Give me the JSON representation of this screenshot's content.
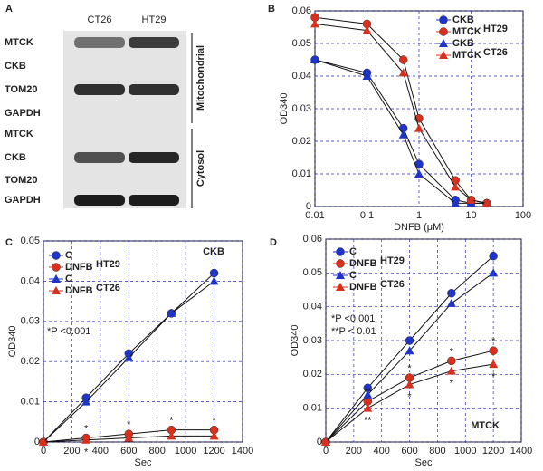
{
  "blot": {
    "panel": "A",
    "columns": [
      "CT26",
      "HT29"
    ],
    "rows": [
      "MTCK",
      "CKB",
      "TOM20",
      "GAPDH",
      "MTCK",
      "CKB",
      "TOM20",
      "GAPDH"
    ],
    "groups": [
      "Mitochondrial",
      "Cytosol"
    ]
  },
  "chart_data": [
    {
      "type": "line",
      "panel": "B",
      "xscale": "log",
      "x": [
        0.01,
        0.1,
        0.5,
        1,
        5,
        10,
        20
      ],
      "xlim": [
        0.01,
        100
      ],
      "xticks": [
        0.01,
        0.1,
        1,
        10,
        100
      ],
      "ylim": [
        0,
        0.06
      ],
      "yticks": [
        0,
        0.01,
        0.02,
        0.03,
        0.04,
        0.05,
        0.06
      ],
      "xlabel": "DNFB (μM)",
      "ylabel": "OD340",
      "grid": true,
      "legend_groups": [
        "HT29",
        "CT26"
      ],
      "annotations": [],
      "series": [
        {
          "name": "CKB",
          "color": "#1f35c8",
          "marker": "circle",
          "values": [
            0.045,
            0.041,
            0.024,
            0.013,
            0.002,
            0.001,
            0.001
          ]
        },
        {
          "name": "MTCK",
          "color": "#d8301c",
          "marker": "circle",
          "values": [
            0.058,
            0.056,
            0.045,
            0.027,
            0.008,
            0.002,
            0.001
          ]
        },
        {
          "name": "CKB",
          "color": "#1f35c8",
          "marker": "triangle",
          "values": [
            0.045,
            0.04,
            0.022,
            0.01,
            0.001,
            0.001,
            0.001
          ]
        },
        {
          "name": "MTCK",
          "color": "#d8301c",
          "marker": "triangle",
          "values": [
            0.056,
            0.054,
            0.041,
            0.024,
            0.006,
            0.002,
            0.001
          ]
        }
      ]
    },
    {
      "type": "line",
      "panel": "C",
      "x": [
        0,
        300,
        600,
        900,
        1200
      ],
      "xlim": [
        0,
        1400
      ],
      "xticks": [
        0,
        200,
        400,
        600,
        800,
        1000,
        1200,
        1400
      ],
      "ylim": [
        0,
        0.05
      ],
      "yticks": [
        0,
        0.01,
        0.02,
        0.03,
        0.04,
        0.05
      ],
      "xlabel": "Sec",
      "ylabel": "OD340",
      "grid": true,
      "legend_groups": [
        "HT29",
        "CT26"
      ],
      "annotations": [
        "*P <0.001",
        "CKB"
      ],
      "series": [
        {
          "name": "C",
          "color": "#1f35c8",
          "marker": "circle",
          "values": [
            0,
            0.011,
            0.022,
            0.032,
            0.042
          ]
        },
        {
          "name": "DNFB",
          "color": "#d8301c",
          "marker": "circle",
          "values": [
            0,
            0.001,
            0.002,
            0.003,
            0.003
          ],
          "point_labels": [
            null,
            "*",
            "*",
            "*",
            "*"
          ]
        },
        {
          "name": "C",
          "color": "#1f35c8",
          "marker": "triangle",
          "values": [
            0,
            0.01,
            0.021,
            0.032,
            0.04
          ]
        },
        {
          "name": "DNFB",
          "color": "#d8301c",
          "marker": "triangle",
          "values": [
            0,
            0.0005,
            0.001,
            0.0015,
            0.0015
          ],
          "point_labels": [
            null,
            "*",
            null,
            null,
            null
          ]
        }
      ]
    },
    {
      "type": "line",
      "panel": "D",
      "x": [
        0,
        300,
        600,
        900,
        1200
      ],
      "xlim": [
        0,
        1400
      ],
      "xticks": [
        0,
        200,
        400,
        600,
        800,
        1000,
        1200,
        1400
      ],
      "ylim": [
        0,
        0.06
      ],
      "yticks": [
        0,
        0.01,
        0.02,
        0.03,
        0.04,
        0.05,
        0.06
      ],
      "xlabel": "Sec",
      "ylabel": "OD340",
      "grid": true,
      "legend_groups": [
        "HT29",
        "CT26"
      ],
      "annotations": [
        "*P <0.001",
        "**P < 0.01",
        "MTCK"
      ],
      "series": [
        {
          "name": "C",
          "color": "#1f35c8",
          "marker": "circle",
          "values": [
            0,
            0.016,
            0.03,
            0.044,
            0.055
          ]
        },
        {
          "name": "DNFB",
          "color": "#d8301c",
          "marker": "circle",
          "values": [
            0,
            0.012,
            0.019,
            0.024,
            0.027
          ],
          "point_labels": [
            null,
            "**",
            "*",
            "*",
            "*"
          ]
        },
        {
          "name": "C",
          "color": "#1f35c8",
          "marker": "triangle",
          "values": [
            0,
            0.014,
            0.027,
            0.041,
            0.05
          ]
        },
        {
          "name": "DNFB",
          "color": "#d8301c",
          "marker": "triangle",
          "values": [
            0,
            0.01,
            0.017,
            0.021,
            0.023
          ],
          "point_labels": [
            null,
            "**",
            "*",
            "*",
            "*"
          ]
        }
      ]
    }
  ]
}
